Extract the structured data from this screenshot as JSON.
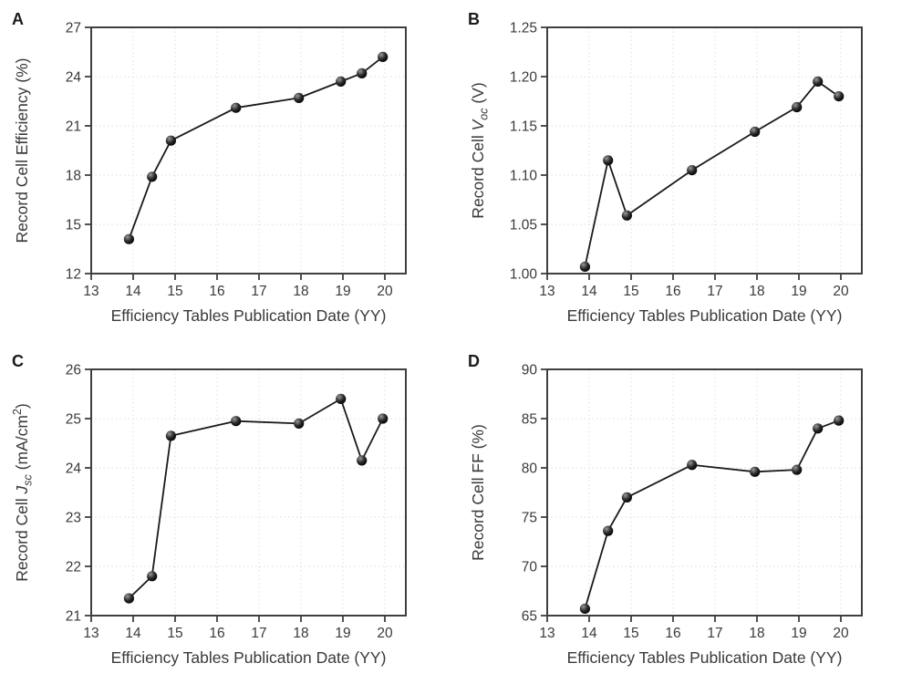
{
  "figure_title": "",
  "style": {
    "background": "#ffffff",
    "axis_color": "#3f3f3f",
    "grid_color": "#dcdcdc",
    "text_color": "#3a3a3a",
    "line_color": "#1a1a1a",
    "marker_core": "#000000",
    "marker_highlight": "#9a9a9a"
  },
  "chart_data": [
    {
      "panel": "A",
      "type": "line",
      "xlabel": "Efficiency Tables Publication Date (YY)",
      "ylabel_parts": [
        {
          "t": "Record Cell Efficiency (%)"
        }
      ],
      "x": [
        13.9,
        14.45,
        14.9,
        16.45,
        17.95,
        18.95,
        19.45,
        19.95
      ],
      "y": [
        14.1,
        17.9,
        20.1,
        22.1,
        22.7,
        23.7,
        24.2,
        25.2
      ],
      "xlim": [
        13,
        20.5
      ],
      "ylim": [
        12,
        27
      ],
      "xticks": [
        13,
        14,
        15,
        16,
        17,
        18,
        19,
        20
      ],
      "xtick_labels": [
        "13",
        "14",
        "15",
        "16",
        "17",
        "18",
        "19",
        "20"
      ],
      "yticks": [
        12,
        15,
        18,
        21,
        24,
        27
      ],
      "ytick_labels": [
        "12",
        "15",
        "18",
        "21",
        "24",
        "27"
      ],
      "grid": true,
      "legend": "none"
    },
    {
      "panel": "B",
      "type": "line",
      "xlabel": "Efficiency Tables Publication Date (YY)",
      "ylabel_parts": [
        {
          "t": "Record Cell "
        },
        {
          "t": "V",
          "i": true
        },
        {
          "t": "oc",
          "i": true,
          "s": "sub"
        },
        {
          "t": " (V)"
        }
      ],
      "x": [
        13.9,
        14.45,
        14.9,
        16.45,
        17.95,
        18.95,
        19.45,
        19.95
      ],
      "y": [
        1.007,
        1.115,
        1.059,
        1.105,
        1.144,
        1.169,
        1.195,
        1.18
      ],
      "xlim": [
        13,
        20.5
      ],
      "ylim": [
        1.0,
        1.25
      ],
      "xticks": [
        13,
        14,
        15,
        16,
        17,
        18,
        19,
        20
      ],
      "xtick_labels": [
        "13",
        "14",
        "15",
        "16",
        "17",
        "18",
        "19",
        "20"
      ],
      "yticks": [
        1.0,
        1.05,
        1.1,
        1.15,
        1.2,
        1.25
      ],
      "ytick_labels": [
        "1.00",
        "1.05",
        "1.10",
        "1.15",
        "1.20",
        "1.25"
      ],
      "grid": true,
      "legend": "none"
    },
    {
      "panel": "C",
      "type": "line",
      "xlabel": "Efficiency Tables Publication Date (YY)",
      "ylabel_parts": [
        {
          "t": "Record Cell "
        },
        {
          "t": "J",
          "i": true
        },
        {
          "t": "sc",
          "i": true,
          "s": "sub"
        },
        {
          "t": " (mA/cm"
        },
        {
          "t": "2",
          "s": "sup"
        },
        {
          "t": ")"
        }
      ],
      "x": [
        13.9,
        14.45,
        14.9,
        16.45,
        17.95,
        18.95,
        19.45,
        19.95
      ],
      "y": [
        21.35,
        21.8,
        24.65,
        24.95,
        24.9,
        25.4,
        24.15,
        25.0
      ],
      "xlim": [
        13,
        20.5
      ],
      "ylim": [
        21,
        26
      ],
      "xticks": [
        13,
        14,
        15,
        16,
        17,
        18,
        19,
        20
      ],
      "xtick_labels": [
        "13",
        "14",
        "15",
        "16",
        "17",
        "18",
        "19",
        "20"
      ],
      "yticks": [
        21,
        22,
        23,
        24,
        25,
        26
      ],
      "ytick_labels": [
        "21",
        "22",
        "23",
        "24",
        "25",
        "26"
      ],
      "grid": true,
      "legend": "none"
    },
    {
      "panel": "D",
      "type": "line",
      "xlabel": "Efficiency Tables Publication Date (YY)",
      "ylabel_parts": [
        {
          "t": "Record Cell FF (%)"
        }
      ],
      "x": [
        13.9,
        14.45,
        14.9,
        16.45,
        17.95,
        18.95,
        19.45,
        19.95
      ],
      "y": [
        65.7,
        73.6,
        77.0,
        80.3,
        79.6,
        79.8,
        84.0,
        84.8
      ],
      "xlim": [
        13,
        20.5
      ],
      "ylim": [
        65,
        90
      ],
      "xticks": [
        13,
        14,
        15,
        16,
        17,
        18,
        19,
        20
      ],
      "xtick_labels": [
        "13",
        "14",
        "15",
        "16",
        "17",
        "18",
        "19",
        "20"
      ],
      "yticks": [
        65,
        70,
        75,
        80,
        85,
        90
      ],
      "ytick_labels": [
        "65",
        "70",
        "75",
        "80",
        "85",
        "90"
      ],
      "grid": true,
      "legend": "none"
    }
  ]
}
